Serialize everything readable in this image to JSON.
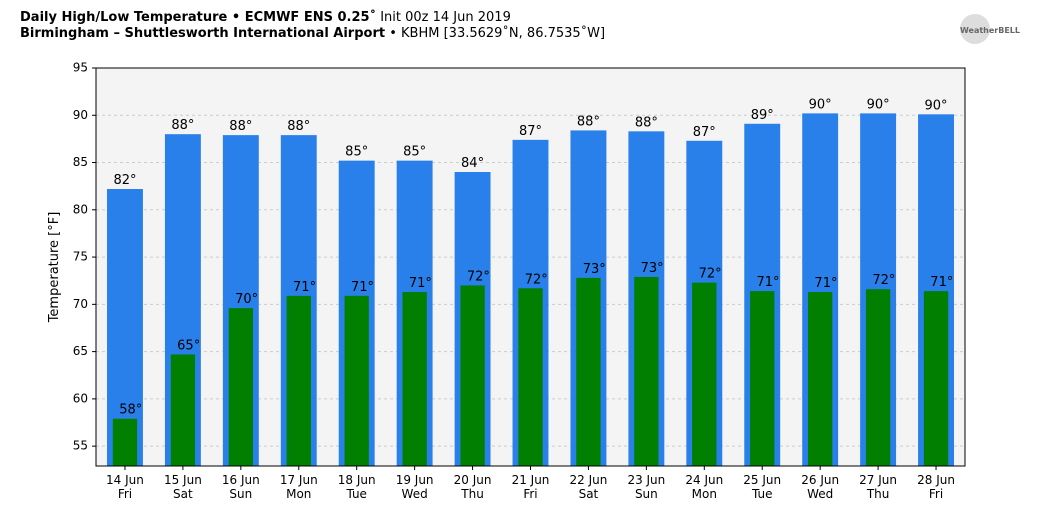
{
  "chart_data": {
    "type": "bar",
    "title": "Daily High/Low Temperature • ECMWF ENS 0.25˚",
    "title_detail": "Init 00z 14 Jun 2019",
    "subtitle": "Birmingham – Shuttlesworth International Airport",
    "subtitle_detail": "• KBHM [33.5629˚N, 86.7535˚W]",
    "logo": "WeatherBELL",
    "ylabel": "Temperature [°F]",
    "categories": [
      [
        "14 Jun",
        "Fri"
      ],
      [
        "15 Jun",
        "Sat"
      ],
      [
        "16 Jun",
        "Sun"
      ],
      [
        "17 Jun",
        "Mon"
      ],
      [
        "18 Jun",
        "Tue"
      ],
      [
        "19 Jun",
        "Wed"
      ],
      [
        "20 Jun",
        "Thu"
      ],
      [
        "21 Jun",
        "Fri"
      ],
      [
        "22 Jun",
        "Sat"
      ],
      [
        "23 Jun",
        "Sun"
      ],
      [
        "24 Jun",
        "Mon"
      ],
      [
        "25 Jun",
        "Tue"
      ],
      [
        "26 Jun",
        "Wed"
      ],
      [
        "27 Jun",
        "Thu"
      ],
      [
        "28 Jun",
        "Fri"
      ]
    ],
    "series": [
      {
        "name": "High",
        "color": "#2a80ea",
        "values": [
          82.2,
          88.0,
          87.9,
          87.9,
          85.2,
          85.2,
          84.0,
          87.4,
          88.4,
          88.3,
          87.3,
          89.1,
          90.2,
          90.2,
          90.1
        ],
        "value_labels": [
          "82°",
          "88°",
          "88°",
          "88°",
          "85°",
          "85°",
          "84°",
          "87°",
          "88°",
          "88°",
          "87°",
          "89°",
          "90°",
          "90°",
          "90°"
        ]
      },
      {
        "name": "Low",
        "color": "#007f00",
        "values": [
          57.9,
          64.7,
          69.6,
          70.9,
          70.9,
          71.3,
          72.0,
          71.7,
          72.8,
          72.9,
          72.3,
          71.4,
          71.3,
          71.6,
          71.4
        ],
        "value_labels": [
          "58°",
          "65°",
          "70°",
          "71°",
          "71°",
          "71°",
          "72°",
          "72°",
          "73°",
          "73°",
          "72°",
          "71°",
          "71°",
          "72°",
          "71°"
        ]
      }
    ],
    "ylim": [
      52.9,
      95
    ],
    "yticks": [
      55,
      60,
      65,
      70,
      75,
      80,
      85,
      90,
      95
    ],
    "grid": true
  }
}
